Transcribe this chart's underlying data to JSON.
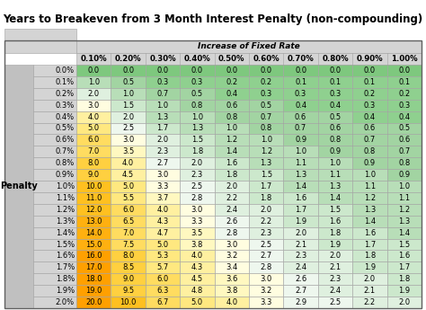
{
  "title": "Years to Breakeven from 3 Month Interest Penalty (non-compounding)",
  "col_header_top": "Increase of Fixed Rate",
  "col_headers": [
    "0.10%",
    "0.20%",
    "0.30%",
    "0.40%",
    "0.50%",
    "0.60%",
    "0.70%",
    "0.80%",
    "0.90%",
    "1.00%"
  ],
  "row_headers": [
    "0.0%",
    "0.1%",
    "0.2%",
    "0.3%",
    "0.4%",
    "0.5%",
    "0.6%",
    "0.7%",
    "0.8%",
    "0.9%",
    "1.0%",
    "1.1%",
    "1.2%",
    "1.3%",
    "1.4%",
    "1.5%",
    "1.6%",
    "1.7%",
    "1.8%",
    "1.9%",
    "2.0%"
  ],
  "row_label": "Penalty",
  "data": [
    [
      0.0,
      0.0,
      0.0,
      0.0,
      0.0,
      0.0,
      0.0,
      0.0,
      0.0,
      0.0
    ],
    [
      1.0,
      0.5,
      0.3,
      0.3,
      0.2,
      0.2,
      0.1,
      0.1,
      0.1,
      0.1
    ],
    [
      2.0,
      1.0,
      0.7,
      0.5,
      0.4,
      0.3,
      0.3,
      0.3,
      0.2,
      0.2
    ],
    [
      3.0,
      1.5,
      1.0,
      0.8,
      0.6,
      0.5,
      0.4,
      0.4,
      0.3,
      0.3
    ],
    [
      4.0,
      2.0,
      1.3,
      1.0,
      0.8,
      0.7,
      0.6,
      0.5,
      0.4,
      0.4
    ],
    [
      5.0,
      2.5,
      1.7,
      1.3,
      1.0,
      0.8,
      0.7,
      0.6,
      0.6,
      0.5
    ],
    [
      6.0,
      3.0,
      2.0,
      1.5,
      1.2,
      1.0,
      0.9,
      0.8,
      0.7,
      0.6
    ],
    [
      7.0,
      3.5,
      2.3,
      1.8,
      1.4,
      1.2,
      1.0,
      0.9,
      0.8,
      0.7
    ],
    [
      8.0,
      4.0,
      2.7,
      2.0,
      1.6,
      1.3,
      1.1,
      1.0,
      0.9,
      0.8
    ],
    [
      9.0,
      4.5,
      3.0,
      2.3,
      1.8,
      1.5,
      1.3,
      1.1,
      1.0,
      0.9
    ],
    [
      10.0,
      5.0,
      3.3,
      2.5,
      2.0,
      1.7,
      1.4,
      1.3,
      1.1,
      1.0
    ],
    [
      11.0,
      5.5,
      3.7,
      2.8,
      2.2,
      1.8,
      1.6,
      1.4,
      1.2,
      1.1
    ],
    [
      12.0,
      6.0,
      4.0,
      3.0,
      2.4,
      2.0,
      1.7,
      1.5,
      1.3,
      1.2
    ],
    [
      13.0,
      6.5,
      4.3,
      3.3,
      2.6,
      2.2,
      1.9,
      1.6,
      1.4,
      1.3
    ],
    [
      14.0,
      7.0,
      4.7,
      3.5,
      2.8,
      2.3,
      2.0,
      1.8,
      1.6,
      1.4
    ],
    [
      15.0,
      7.5,
      5.0,
      3.8,
      3.0,
      2.5,
      2.1,
      1.9,
      1.7,
      1.5
    ],
    [
      16.0,
      8.0,
      5.3,
      4.0,
      3.2,
      2.7,
      2.3,
      2.0,
      1.8,
      1.6
    ],
    [
      17.0,
      8.5,
      5.7,
      4.3,
      3.4,
      2.8,
      2.4,
      2.1,
      1.9,
      1.7
    ],
    [
      18.0,
      9.0,
      6.0,
      4.5,
      3.6,
      3.0,
      2.6,
      2.3,
      2.0,
      1.8
    ],
    [
      19.0,
      9.5,
      6.3,
      4.8,
      3.8,
      3.2,
      2.7,
      2.4,
      2.1,
      1.9
    ],
    [
      20.0,
      10.0,
      6.7,
      5.0,
      4.0,
      3.3,
      2.9,
      2.5,
      2.2,
      2.0
    ]
  ],
  "header_bg": "#d4d4d4",
  "label_bg": "#c0c0c0",
  "grid_color": "#a0a0a0",
  "title_fontsize": 8.5,
  "cell_fontsize": 6.0,
  "header_fontsize": 6.5
}
